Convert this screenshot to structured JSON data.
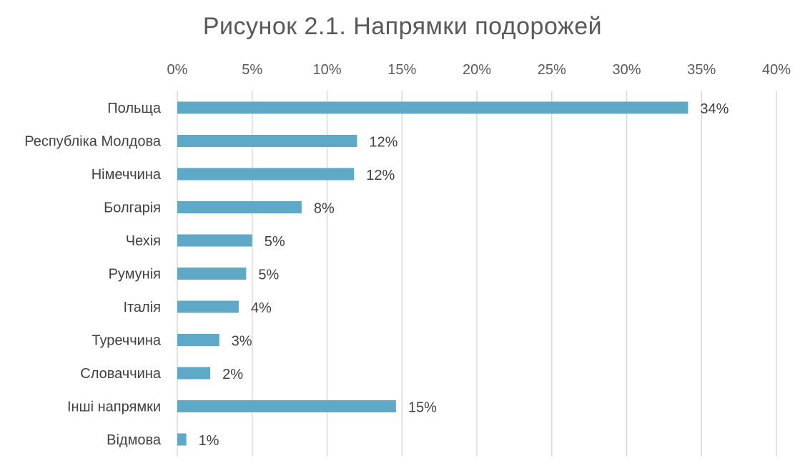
{
  "chart_data": {
    "type": "bar",
    "orientation": "horizontal",
    "title": "Рисунок 2.1. Напрямки подорожей",
    "xlabel": "",
    "ylabel": "",
    "categories": [
      "Польща",
      "Республіка Молдова",
      "Німеччина",
      "Болгарія",
      "Чехія",
      "Румунія",
      "Італія",
      "Туреччина",
      "Словаччина",
      "Інші напрямки",
      "Відмова"
    ],
    "values": [
      34.1,
      12.0,
      11.8,
      8.3,
      5.0,
      4.6,
      4.1,
      2.8,
      2.2,
      14.6,
      0.6
    ],
    "data_labels": [
      "34%",
      "12%",
      "12%",
      "8%",
      "5%",
      "5%",
      "4%",
      "3%",
      "2%",
      "15%",
      "1%"
    ],
    "xlim": [
      0,
      40
    ],
    "xticks": [
      0,
      5,
      10,
      15,
      20,
      25,
      30,
      35,
      40
    ],
    "xtick_labels": [
      "0%",
      "5%",
      "10%",
      "15%",
      "20%",
      "25%",
      "30%",
      "35%",
      "40%"
    ],
    "x_axis_position": "top",
    "grid": true,
    "legend": "none",
    "bar_color": "#5ea8c8"
  }
}
